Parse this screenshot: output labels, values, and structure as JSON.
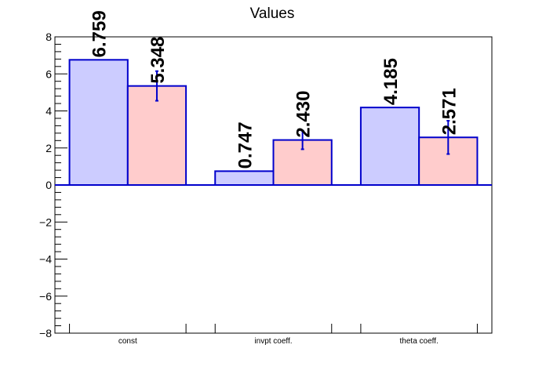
{
  "chart_data": {
    "type": "bar",
    "title": "Values",
    "categories": [
      "const",
      "invpt coeff.",
      "theta coeff."
    ],
    "series": [
      {
        "values": [
          6.759,
          0.747,
          4.185
        ],
        "errors": [
          0,
          0,
          0
        ],
        "labels": [
          "6.759",
          "0.747",
          "4.185"
        ],
        "color": "#ccccff"
      },
      {
        "values": [
          5.348,
          2.43,
          2.571
        ],
        "errors": [
          0.8,
          0.5,
          0.9
        ],
        "labels": [
          "5.348",
          "2.430",
          "2.571"
        ],
        "color": "#ffcccc"
      }
    ],
    "ylim": [
      -8,
      8
    ],
    "yticks": [
      -8,
      -6,
      -4,
      -2,
      0,
      2,
      4,
      6,
      8
    ],
    "ytick_labels": [
      "−8",
      "−6",
      "−4",
      "−2",
      "0",
      "2",
      "4",
      "6",
      "8"
    ],
    "grid": false,
    "legend": "none",
    "colors": {
      "outline": "#0000cc",
      "baseline": "#0000cc",
      "axis": "#000000"
    }
  }
}
